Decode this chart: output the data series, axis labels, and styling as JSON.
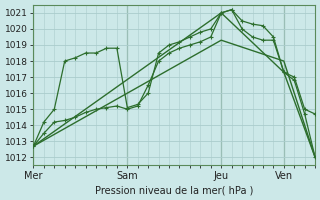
{
  "background_color": "#cce8e8",
  "plot_bg_color": "#cce8e8",
  "grid_color": "#aacccc",
  "line_color": "#2d6e2d",
  "xlabel": "Pression niveau de la mer( hPa )",
  "ylim": [
    1011.5,
    1021.5
  ],
  "yticks": [
    1012,
    1013,
    1014,
    1015,
    1016,
    1017,
    1018,
    1019,
    1020,
    1021
  ],
  "day_labels": [
    "Mer",
    "Sam",
    "Jeu",
    "Ven"
  ],
  "day_positions": [
    0,
    9,
    18,
    24
  ],
  "xlim": [
    0,
    27
  ],
  "line1": {
    "x": [
      0,
      18,
      24,
      27
    ],
    "y": [
      1012.7,
      1021.0,
      1017.3,
      1012.0
    ]
  },
  "line2": {
    "x": [
      0,
      18,
      24,
      27
    ],
    "y": [
      1012.7,
      1019.3,
      1018.0,
      1012.0
    ]
  },
  "line3": {
    "x": [
      0,
      1,
      2,
      3,
      4,
      5,
      6,
      7,
      8,
      9,
      10,
      11,
      12,
      13,
      14,
      15,
      16,
      17,
      18,
      19,
      20,
      21,
      22,
      23,
      24,
      25,
      26,
      27
    ],
    "y": [
      1012.7,
      1014.2,
      1015.0,
      1018.0,
      1018.2,
      1018.5,
      1018.5,
      1018.8,
      1018.8,
      1015.1,
      1015.3,
      1016.0,
      1018.5,
      1019.0,
      1019.2,
      1019.5,
      1019.8,
      1020.0,
      1021.0,
      1021.2,
      1020.5,
      1020.3,
      1020.2,
      1019.5,
      1017.3,
      1017.0,
      1015.0,
      1014.7
    ]
  },
  "line4": {
    "x": [
      0,
      1,
      2,
      3,
      4,
      5,
      6,
      7,
      8,
      9,
      10,
      11,
      12,
      13,
      14,
      15,
      16,
      17,
      18,
      19,
      20,
      21,
      22,
      23,
      24,
      25,
      26,
      27
    ],
    "y": [
      1012.7,
      1013.5,
      1014.2,
      1014.3,
      1014.5,
      1014.8,
      1015.0,
      1015.1,
      1015.2,
      1015.0,
      1015.2,
      1016.5,
      1018.0,
      1018.5,
      1018.8,
      1019.0,
      1019.2,
      1019.5,
      1021.0,
      1021.2,
      1020.0,
      1019.5,
      1019.3,
      1019.3,
      1017.3,
      1016.8,
      1014.7,
      1012.0
    ]
  }
}
